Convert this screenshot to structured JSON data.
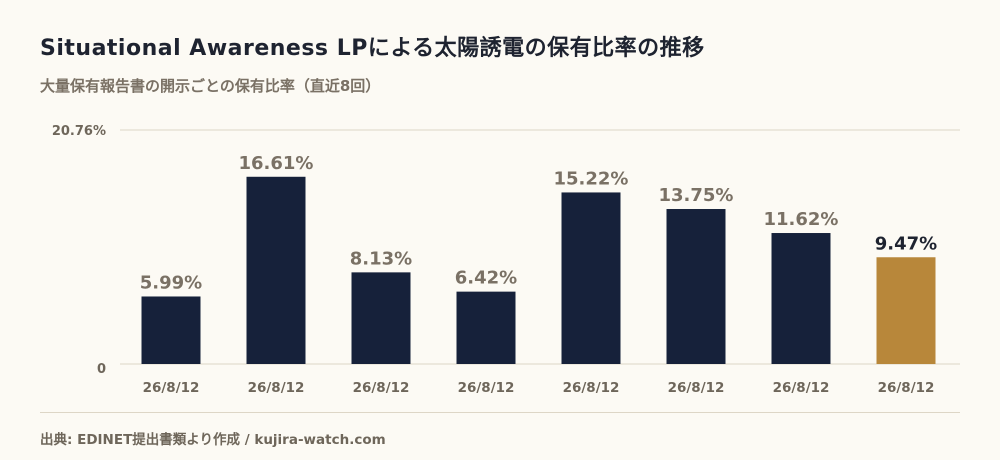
{
  "header": {
    "title": "Situational Awareness LPによる太陽誘電の保有比率の推移",
    "subtitle": "大量保有報告書の開示ごとの保有比率（直近8回）"
  },
  "footer": {
    "source": "出典: EDINET提出書類より作成 / kujira-watch.com"
  },
  "colors": {
    "bar": "#16213a",
    "highlight_bar": "#b8873a",
    "value_label": "#7a7165",
    "highlight_value_label": "#1e2330",
    "grid": "#ddd6c6"
  },
  "chart_data": {
    "type": "bar",
    "title": "Situational Awareness LPによる太陽誘電の保有比率の推移",
    "subtitle": "大量保有報告書の開示ごとの保有比率（直近8回）",
    "categories": [
      "26/8/12",
      "26/8/12",
      "26/8/12",
      "26/8/12",
      "26/8/12",
      "26/8/12",
      "26/8/12",
      "26/8/12"
    ],
    "values": [
      5.99,
      16.61,
      8.13,
      6.42,
      15.22,
      13.75,
      11.62,
      9.47
    ],
    "value_labels": [
      "5.99%",
      "16.61%",
      "8.13%",
      "6.42%",
      "15.22%",
      "13.75%",
      "11.62%",
      "9.47%"
    ],
    "highlight_index": 7,
    "ylim": [
      0,
      20.76
    ],
    "y_tick_labels": [
      "0",
      "20.76%"
    ],
    "grid": true,
    "legend": "none"
  }
}
